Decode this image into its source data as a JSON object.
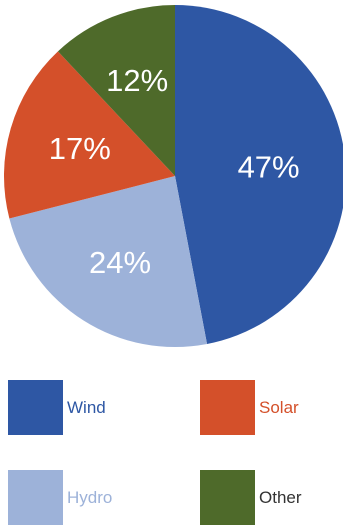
{
  "chart_data": {
    "type": "pie",
    "title": "",
    "slices": [
      {
        "label": "Wind",
        "value": 47,
        "display": "47%",
        "color": "#2E57A4"
      },
      {
        "label": "Hydro",
        "value": 24,
        "display": "24%",
        "color": "#9DB2D9"
      },
      {
        "label": "Solar",
        "value": 17,
        "display": "17%",
        "color": "#D4502A"
      },
      {
        "label": "Other",
        "value": 12,
        "display": "12%",
        "color": "#4E6A2A"
      }
    ],
    "legend_placement": "bottom"
  },
  "legend": {
    "wind": {
      "label": "Wind",
      "color": "#2E57A4",
      "text_color": "#2E57A4"
    },
    "solar": {
      "label": "Solar",
      "color": "#D4502A",
      "text_color": "#D4502A"
    },
    "hydro": {
      "label": "Hydro",
      "color": "#9DB2D9",
      "text_color": "#9DB2D9"
    },
    "other": {
      "label": "Other",
      "color": "#4E6A2A",
      "text_color": "#333333"
    }
  }
}
